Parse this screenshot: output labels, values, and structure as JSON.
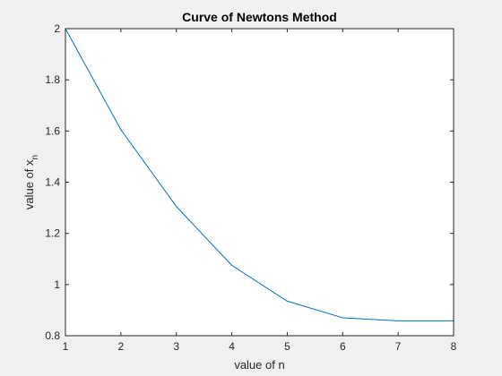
{
  "chart_data": {
    "type": "line",
    "title": "Curve of Newtons Method",
    "xlabel": "value of n",
    "ylabel": {
      "main": "value of x",
      "subscript": "n"
    },
    "xlim": [
      1,
      8
    ],
    "ylim": [
      0.8,
      2
    ],
    "xticks": [
      "1",
      "2",
      "3",
      "4",
      "5",
      "6",
      "7",
      "8"
    ],
    "yticks": [
      "0.8",
      "1",
      "1.2",
      "1.4",
      "1.6",
      "1.8",
      "2"
    ],
    "grid": false,
    "legend": "none",
    "series": [
      {
        "color": "#0072bd",
        "x": [
          1,
          2,
          3,
          4,
          5,
          6,
          7,
          8
        ],
        "values": [
          2.0,
          1.605,
          1.305,
          1.075,
          0.935,
          0.87,
          0.858,
          0.858
        ]
      }
    ]
  }
}
